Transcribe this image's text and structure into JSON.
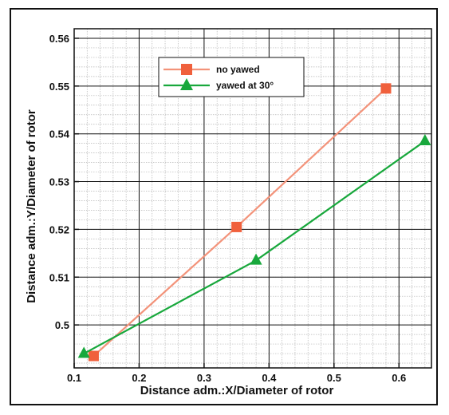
{
  "chart_data": {
    "type": "line",
    "xlabel": "Distance adm.:X/Diameter of rotor",
    "ylabel": "Distance adm.:Y/Diameter of rotor",
    "xlim": [
      0.1,
      0.65
    ],
    "ylim": [
      0.491,
      0.562
    ],
    "xticks": [
      0.1,
      0.2,
      0.3,
      0.4,
      0.5,
      0.6
    ],
    "xtick_labels": [
      "0.1",
      "0.2",
      "0.3",
      "0.4",
      "0.5",
      "0.6"
    ],
    "yticks": [
      0.5,
      0.51,
      0.52,
      0.53,
      0.54,
      0.55,
      0.56
    ],
    "ytick_labels": [
      "0.5",
      "0.51",
      "0.52",
      "0.53",
      "0.54",
      "0.55",
      "0.56"
    ],
    "grid": true,
    "legend_position": "top-center",
    "series": [
      {
        "name": "no yawed",
        "color": "#f0603c",
        "line_color": "#f3937a",
        "marker": "square",
        "x": [
          0.13,
          0.35,
          0.58
        ],
        "y": [
          0.4935,
          0.5205,
          0.5495
        ]
      },
      {
        "name": "yawed at 30°",
        "color": "#18a83c",
        "line_color": "#18a83c",
        "marker": "triangle",
        "x": [
          0.115,
          0.38,
          0.64
        ],
        "y": [
          0.494,
          0.5135,
          0.5385
        ]
      }
    ]
  }
}
